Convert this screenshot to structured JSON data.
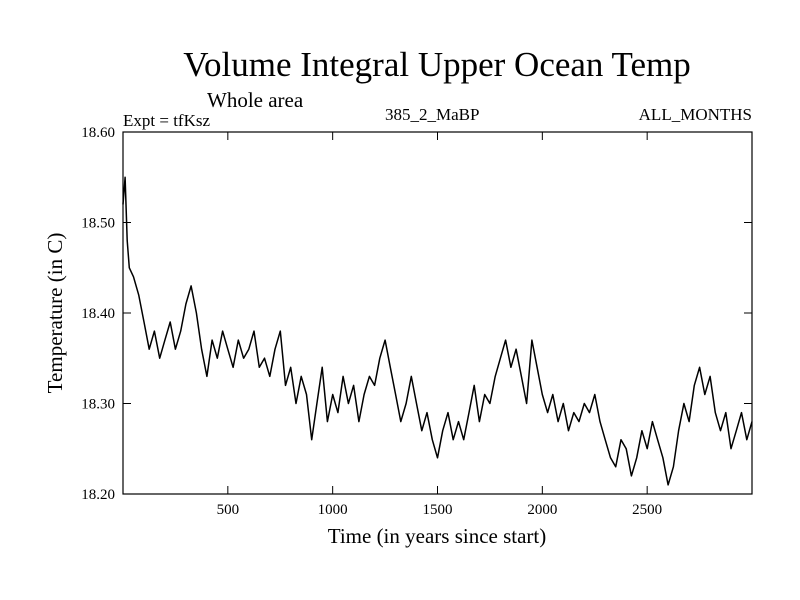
{
  "chart_data": {
    "type": "line",
    "title": "Volume Integral Upper Ocean Temp",
    "subtitle": "Whole area",
    "experiment_label": "Expt = tfKsz",
    "run_label": "385_2_MaBP",
    "months_label": "ALL_MONTHS",
    "xlabel": "Time (in years since start)",
    "ylabel": "Temperature (in C)",
    "xlim": [
      0,
      3000
    ],
    "ylim": [
      18.2,
      18.6
    ],
    "x_ticks": [
      500,
      1000,
      1500,
      2000,
      2500
    ],
    "x_tick_labels": [
      "500",
      "1000",
      "1500",
      "2000",
      "2500"
    ],
    "y_ticks": [
      18.2,
      18.3,
      18.4,
      18.5,
      18.6
    ],
    "y_tick_labels": [
      "18.20",
      "18.30",
      "18.40",
      "18.50",
      "18.60"
    ],
    "grid": false,
    "line_color": "#000000",
    "series": [
      {
        "name": "Volume integral upper ocean temperature",
        "x": [
          0,
          10,
          20,
          30,
          50,
          75,
          100,
          125,
          150,
          175,
          200,
          225,
          250,
          275,
          300,
          325,
          350,
          375,
          400,
          425,
          450,
          475,
          500,
          525,
          550,
          575,
          600,
          625,
          650,
          675,
          700,
          725,
          750,
          775,
          800,
          825,
          850,
          875,
          900,
          925,
          950,
          975,
          1000,
          1025,
          1050,
          1075,
          1100,
          1125,
          1150,
          1175,
          1200,
          1225,
          1250,
          1275,
          1300,
          1325,
          1350,
          1375,
          1400,
          1425,
          1450,
          1475,
          1500,
          1525,
          1550,
          1575,
          1600,
          1625,
          1650,
          1675,
          1700,
          1725,
          1750,
          1775,
          1800,
          1825,
          1850,
          1875,
          1900,
          1925,
          1950,
          1975,
          2000,
          2025,
          2050,
          2075,
          2100,
          2125,
          2150,
          2175,
          2200,
          2225,
          2250,
          2275,
          2300,
          2325,
          2350,
          2375,
          2400,
          2425,
          2450,
          2475,
          2500,
          2525,
          2550,
          2575,
          2600,
          2625,
          2650,
          2675,
          2700,
          2725,
          2750,
          2775,
          2800,
          2825,
          2850,
          2875,
          2900,
          2925,
          2950,
          2975,
          3000
        ],
        "values": [
          18.52,
          18.55,
          18.48,
          18.45,
          18.44,
          18.42,
          18.39,
          18.36,
          18.38,
          18.35,
          18.37,
          18.39,
          18.36,
          18.38,
          18.41,
          18.43,
          18.4,
          18.36,
          18.33,
          18.37,
          18.35,
          18.38,
          18.36,
          18.34,
          18.37,
          18.35,
          18.36,
          18.38,
          18.34,
          18.35,
          18.33,
          18.36,
          18.38,
          18.32,
          18.34,
          18.3,
          18.33,
          18.31,
          18.26,
          18.3,
          18.34,
          18.28,
          18.31,
          18.29,
          18.33,
          18.3,
          18.32,
          18.28,
          18.31,
          18.33,
          18.32,
          18.35,
          18.37,
          18.34,
          18.31,
          18.28,
          18.3,
          18.33,
          18.3,
          18.27,
          18.29,
          18.26,
          18.24,
          18.27,
          18.29,
          18.26,
          18.28,
          18.26,
          18.29,
          18.32,
          18.28,
          18.31,
          18.3,
          18.33,
          18.35,
          18.37,
          18.34,
          18.36,
          18.33,
          18.3,
          18.37,
          18.34,
          18.31,
          18.29,
          18.31,
          18.28,
          18.3,
          18.27,
          18.29,
          18.28,
          18.3,
          18.29,
          18.31,
          18.28,
          18.26,
          18.24,
          18.23,
          18.26,
          18.25,
          18.22,
          18.24,
          18.27,
          18.25,
          18.28,
          18.26,
          18.24,
          18.21,
          18.23,
          18.27,
          18.3,
          18.28,
          18.32,
          18.34,
          18.31,
          18.33,
          18.29,
          18.27,
          18.29,
          18.25,
          18.27,
          18.29,
          18.26,
          18.28
        ]
      }
    ]
  }
}
